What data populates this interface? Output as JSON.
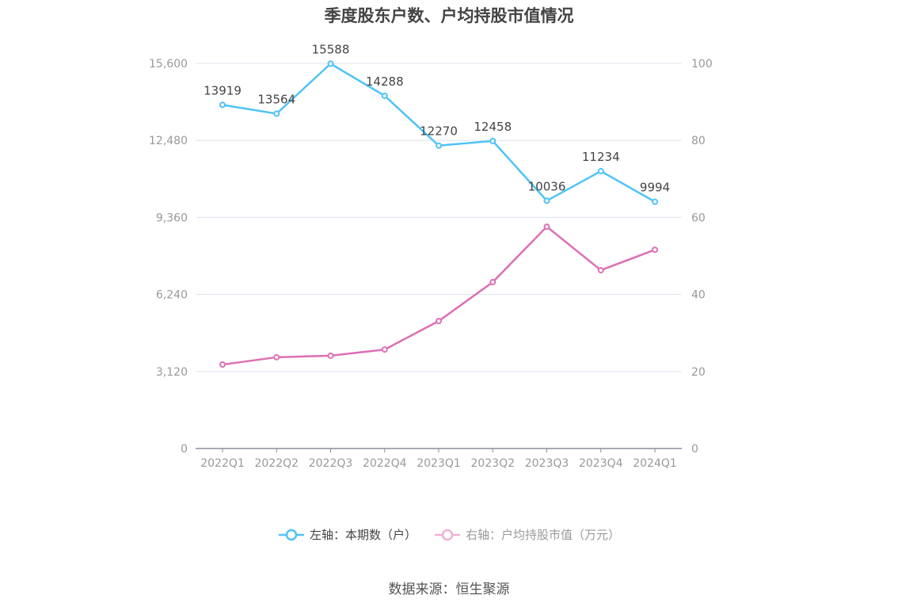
{
  "chart_data": {
    "type": "line",
    "title": "季度股东户数、户均持股市值情况",
    "categories": [
      "2022Q1",
      "2022Q2",
      "2022Q3",
      "2022Q4",
      "2023Q1",
      "2023Q2",
      "2023Q3",
      "2023Q4",
      "2024Q1"
    ],
    "y_left": {
      "ticks": [
        "0",
        "3,120",
        "6,240",
        "9,360",
        "12,480",
        "15,600"
      ],
      "range": [
        0,
        15600
      ]
    },
    "y_right": {
      "ticks": [
        "0",
        "20",
        "40",
        "60",
        "80",
        "100"
      ],
      "range": [
        0,
        100
      ]
    },
    "grid": true,
    "legend_position": "bottom",
    "series": [
      {
        "name": "左轴：本期数（户）",
        "axis": "left",
        "color": "#4fc3f7",
        "values": [
          13919,
          13564,
          15588,
          14288,
          12270,
          12458,
          10036,
          11234,
          9994
        ],
        "labels": [
          "13919",
          "13564",
          "15588",
          "14288",
          "12270",
          "12458",
          "10036",
          "11234",
          "9994"
        ]
      },
      {
        "name": "右轴：户均持股市值（万元）",
        "axis": "right",
        "color": "#dd6fb4",
        "values": [
          21.8,
          23.7,
          24.1,
          25.7,
          33.1,
          43.2,
          57.6,
          46.3,
          51.6
        ]
      }
    ]
  },
  "source": "数据来源：恒生聚源"
}
